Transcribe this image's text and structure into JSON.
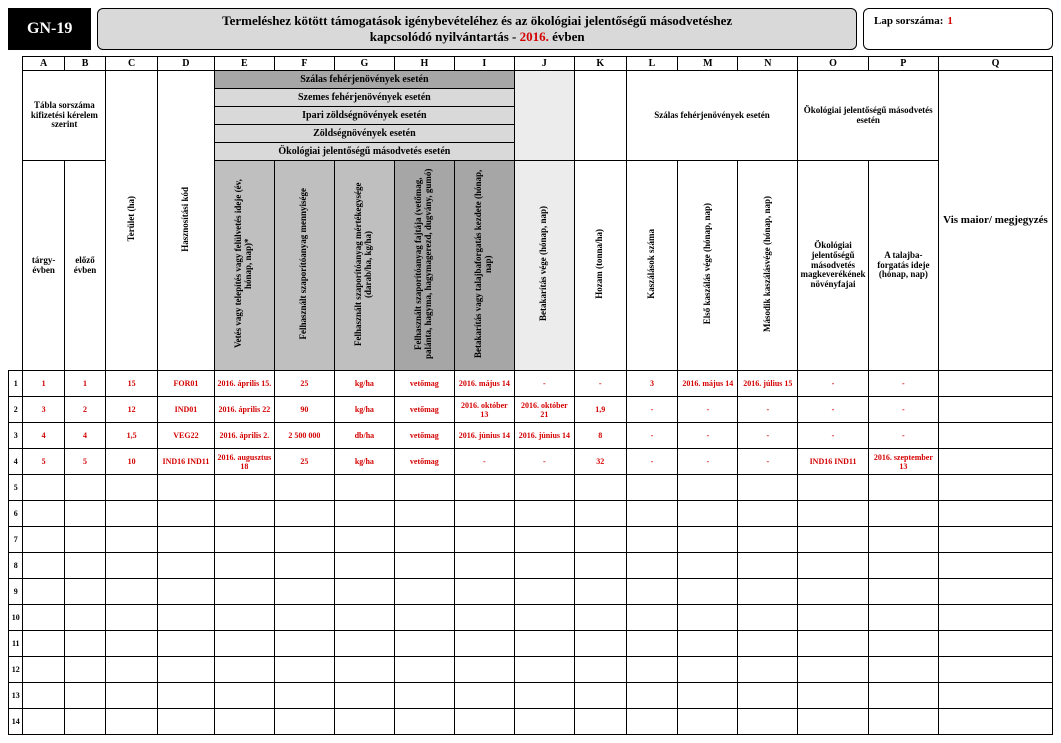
{
  "header": {
    "code": "GN-19",
    "title_line1": "Termeléshez kötött támogatások igénybevételéhez és az ökológiai jelentőségű másodvetéshez",
    "title_line2_prefix": "kapcsolódó nyilvántartás - ",
    "title_year": "2016.",
    "title_line2_suffix": "  évben",
    "lap_label": "Lap sorszáma:",
    "lap_value": "1"
  },
  "columns": [
    "A",
    "B",
    "C",
    "D",
    "E",
    "F",
    "G",
    "H",
    "I",
    "J",
    "K",
    "L",
    "M",
    "N",
    "O",
    "P",
    "Q"
  ],
  "groupHeaders": {
    "tabla": "Tábla sorszáma kifizetési kérelem szerint",
    "szalas_top": "Szálas fehérjenövények esetén",
    "szemes": "Szemes fehérjenövények esetén",
    "ipari": "Ipari zöldségnövények esetén",
    "zoldseg": "Zöldségnövények esetén",
    "okomasod": "Ökológiai jelentőségű másodvetés esetén",
    "szalas_right": "Szálas fehérjenövények esetén",
    "oko_right": "Ökológiai jelentőségű másodvetés esetén"
  },
  "colHeads": {
    "A": "tárgy-évben",
    "B": "előző évben",
    "C": "Terület (ha)",
    "D": "Hasznosítási kód",
    "E": "Vetés vagy telepítés vagy felülvetés  ideje (év, hónap, nap)*",
    "F": "Felhasznált szaporítóanyag mennyisége",
    "G": "Felhasznált szaporítóanyag mértékegysége (darab/ha, kg/ha)",
    "H": "Felhasznált szaporítóanyag fajtája (vetőmag, palánta, hagyma, hagymagerezd, dugvány, gumó)",
    "I": "Betakarítás vagy talajbaforgatás kezdete (hónap, nap)",
    "J": "Betakarítás vége  (hónap, nap)",
    "K": "Hozam (tonna/ha)",
    "L": "Kaszálások száma",
    "M": "Első kaszálás vége (hónap, nap)",
    "N": "Második kaszálásvége (hónap, nap)",
    "O": "Ökológiai jelentőségű másodvetés magkeverékének növényfajai",
    "P": "A talajba-forgatás ideje (hónap, nap)",
    "Q": "Vis maior/ megjegyzés"
  },
  "rows": [
    {
      "n": "1",
      "A": "1",
      "B": "1",
      "C": "15",
      "D": "FOR01",
      "E": "2016. április 15.",
      "F": "25",
      "G": "kg/ha",
      "H": "vetőmag",
      "I": "2016. május 14",
      "J": "-",
      "K": "-",
      "L": "3",
      "M": "2016. május 14",
      "N": "2016. július 15",
      "O": "-",
      "P": "-",
      "Q": ""
    },
    {
      "n": "2",
      "A": "3",
      "B": "2",
      "C": "12",
      "D": "IND01",
      "E": "2016. április 22",
      "F": "90",
      "G": "kg/ha",
      "H": "vetőmag",
      "I": "2016. október 13",
      "J": "2016. október 21",
      "K": "1,9",
      "L": "-",
      "M": "-",
      "N": "-",
      "O": "-",
      "P": "-",
      "Q": ""
    },
    {
      "n": "3",
      "A": "4",
      "B": "4",
      "C": "1,5",
      "D": "VEG22",
      "E": "2016. április 2.",
      "F": "2 500 000",
      "G": "db/ha",
      "H": "vetőmag",
      "I": "2016. június 14",
      "J": "2016. június 14",
      "K": "8",
      "L": "-",
      "M": "-",
      "N": "-",
      "O": "-",
      "P": "-",
      "Q": ""
    },
    {
      "n": "4",
      "A": "5",
      "B": "5",
      "C": "10",
      "D": "IND16 IND11",
      "E": "2016. augusztus 18",
      "F": "25",
      "G": "kg/ha",
      "H": "vetőmag",
      "I": "-",
      "J": "-",
      "K": "32",
      "L": "-",
      "M": "-",
      "N": "-",
      "O": "IND16      IND11",
      "P": "2016. szeptember 13",
      "Q": ""
    },
    {
      "n": "5"
    },
    {
      "n": "6"
    },
    {
      "n": "7"
    },
    {
      "n": "8"
    },
    {
      "n": "9"
    },
    {
      "n": "10"
    },
    {
      "n": "11"
    },
    {
      "n": "12"
    },
    {
      "n": "13"
    },
    {
      "n": "14"
    }
  ],
  "styling": {
    "red": "#d40000",
    "dark": "#a6a6a6",
    "mid": "#bfbfbf",
    "light": "#d9d9d9",
    "xlight": "#ececec",
    "border": "#000000",
    "font": "Times New Roman"
  }
}
